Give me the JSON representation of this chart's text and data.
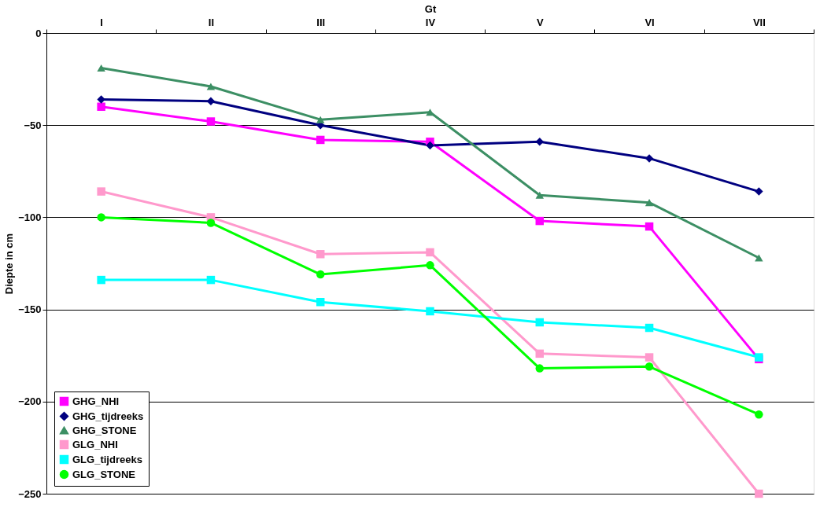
{
  "chart_data": {
    "type": "line",
    "xlabel": "Gt",
    "ylabel": "Diepte in cm",
    "categories": [
      "I",
      "II",
      "III",
      "IV",
      "V",
      "VI",
      "VII"
    ],
    "ylim": [
      -250,
      0
    ],
    "yticks": [
      0,
      -50,
      -100,
      -150,
      -200,
      -250
    ],
    "grid": "y",
    "legend": "bottom left",
    "line_style": "solid",
    "series": [
      {
        "name": "GHG_NHI",
        "color": "#ff00ff",
        "marker": "square",
        "values": [
          -40,
          -48,
          -58,
          -59,
          -102,
          -105,
          -177
        ]
      },
      {
        "name": "GHG_tijdreeks",
        "color": "#000080",
        "marker": "diamond",
        "values": [
          -36,
          -37,
          -50,
          -61,
          -59,
          -68,
          -86
        ]
      },
      {
        "name": "GHG_STONE",
        "color": "#3c8f64",
        "marker": "triangle",
        "values": [
          -19,
          -29,
          -47,
          -43,
          -88,
          -92,
          -122
        ]
      },
      {
        "name": "GLG_NHI",
        "color": "#ff99cc",
        "marker": "square",
        "values": [
          -86,
          -100,
          -120,
          -119,
          -174,
          -176,
          -250
        ]
      },
      {
        "name": "GLG_tijdreeks",
        "color": "#00ffff",
        "marker": "square",
        "values": [
          -134,
          -134,
          -146,
          -151,
          -157,
          -160,
          -176
        ]
      },
      {
        "name": "GLG_STONE",
        "color": "#00ff00",
        "marker": "circle",
        "values": [
          -100,
          -103,
          -131,
          -126,
          -182,
          -181,
          -207
        ]
      }
    ]
  }
}
